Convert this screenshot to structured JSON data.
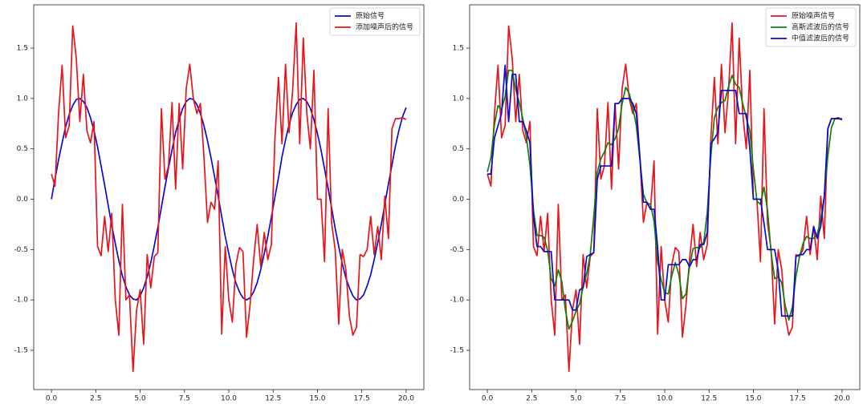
{
  "chart_data": [
    {
      "type": "line",
      "legend": "upper right",
      "xlim": [
        -1,
        21
      ],
      "ylim": [
        -1.89,
        1.93
      ],
      "xticks": [
        {
          "value": 0,
          "label": "0.0"
        },
        {
          "value": 2.5,
          "label": "2.5"
        },
        {
          "value": 5,
          "label": "5.0"
        },
        {
          "value": 7.5,
          "label": "7.5"
        },
        {
          "value": 10,
          "label": "10.0"
        },
        {
          "value": 12.5,
          "label": "12.5"
        },
        {
          "value": 15,
          "label": "15.0"
        },
        {
          "value": 17.5,
          "label": "17.5"
        },
        {
          "value": 20,
          "label": "20.0"
        }
      ],
      "yticks": [
        -1.5,
        {
          "value": -1,
          "label": "-1.0"
        },
        -0.5,
        {
          "value": 0,
          "label": "0.0"
        },
        0.5,
        {
          "value": 1,
          "label": "1.0"
        },
        1.5
      ],
      "x": [
        0,
        0.2,
        0.4,
        0.6,
        0.8,
        1,
        1.2,
        1.4,
        1.6,
        1.8,
        2,
        2.2,
        2.4,
        2.6,
        2.8,
        3,
        3.2,
        3.4,
        3.6,
        3.8,
        4,
        4.2,
        4.4,
        4.6,
        4.8,
        5,
        5.2,
        5.4,
        5.6,
        5.8,
        6,
        6.2,
        6.4,
        6.6,
        6.8,
        7,
        7.2,
        7.4,
        7.6,
        7.8,
        8,
        8.2,
        8.4,
        8.6,
        8.8,
        9,
        9.2,
        9.4,
        9.6,
        9.8,
        10,
        10.2,
        10.4,
        10.6,
        10.8,
        11,
        11.2,
        11.4,
        11.6,
        11.8,
        12,
        12.2,
        12.4,
        12.6,
        12.8,
        13,
        13.2,
        13.4,
        13.6,
        13.8,
        14,
        14.2,
        14.4,
        14.6,
        14.8,
        15,
        15.2,
        15.4,
        15.6,
        15.8,
        16,
        16.2,
        16.4,
        16.6,
        16.8,
        17,
        17.2,
        17.4,
        17.6,
        17.8,
        18,
        18.2,
        18.4,
        18.6,
        18.8,
        19,
        19.2,
        19.4,
        19.6,
        19.8,
        20
      ],
      "series": [
        {
          "name": "原始信号",
          "color": "#0a0ad0",
          "values": [
            0,
            0.2,
            0.39,
            0.56,
            0.72,
            0.84,
            0.93,
            0.99,
            1,
            0.97,
            0.91,
            0.81,
            0.68,
            0.52,
            0.33,
            0.14,
            -0.06,
            -0.26,
            -0.44,
            -0.61,
            -0.76,
            -0.87,
            -0.95,
            -0.99,
            -1,
            -0.96,
            -0.88,
            -0.77,
            -0.63,
            -0.46,
            -0.28,
            -0.08,
            0.12,
            0.31,
            0.49,
            0.66,
            0.79,
            0.9,
            0.97,
            1,
            0.99,
            0.94,
            0.85,
            0.73,
            0.58,
            0.41,
            0.22,
            0.03,
            -0.17,
            -0.37,
            -0.54,
            -0.7,
            -0.83,
            -0.92,
            -0.98,
            -1,
            -0.98,
            -0.92,
            -0.83,
            -0.7,
            -0.54,
            -0.37,
            -0.18,
            0.02,
            0.21,
            0.42,
            0.59,
            0.74,
            0.86,
            0.94,
            0.99,
            1,
            0.97,
            0.9,
            0.79,
            0.65,
            0.49,
            0.3,
            0.11,
            -0.09,
            -0.29,
            -0.47,
            -0.64,
            -0.78,
            -0.88,
            -0.96,
            -1,
            -0.99,
            -0.95,
            -0.86,
            -0.75,
            -0.6,
            -0.43,
            -0.25,
            -0.05,
            0.15,
            0.34,
            0.53,
            0.69,
            0.82,
            0.91
          ]
        },
        {
          "name": "添加噪声后的信号",
          "color": "#e8141c",
          "values": [
            0.25,
            0.13,
            0.85,
            1.33,
            0.61,
            0.73,
            1.72,
            1.4,
            0.77,
            1.24,
            0.68,
            0.56,
            0.77,
            -0.47,
            -0.56,
            -0.17,
            -0.52,
            -0.14,
            -1,
            -1.35,
            -0.05,
            -1,
            -0.95,
            -1.71,
            -1.1,
            -0.9,
            -1.44,
            -0.55,
            -0.88,
            -0.57,
            -0.53,
            0.9,
            0.2,
            0.33,
            0.96,
            0.1,
            0.95,
            0.3,
            1.1,
            1.34,
            1,
            0.85,
            0.95,
            0.42,
            -0.23,
            -0.03,
            -0.1,
            0.38,
            -1.34,
            -0.47,
            -1,
            -1.22,
            -0.65,
            -0.48,
            -0.52,
            -1.37,
            -1.05,
            -0.6,
            -0.25,
            -0.67,
            -0.33,
            -0.6,
            -0.45,
            0.6,
            1.21,
            0.55,
            1.34,
            0.66,
            1.08,
            1.75,
            0.55,
            1.6,
            0.85,
            0.5,
            1.28,
            0,
            0,
            -0.62,
            0.9,
            -0.24,
            -0.5,
            -1.24,
            -0.5,
            -0.7,
            -1.16,
            -1.35,
            -1.27,
            -0.55,
            -0.57,
            -0.5,
            -0.17,
            -0.55,
            -0.27,
            -0.6,
            0.03,
            -0.39,
            0.7,
            0.8,
            0.8,
            0.81,
            0.79
          ]
        }
      ]
    },
    {
      "type": "line",
      "legend": "upper right",
      "xlim": [
        -1,
        21
      ],
      "ylim": [
        -1.89,
        1.93
      ],
      "xticks": [
        {
          "value": 0,
          "label": "0.0"
        },
        {
          "value": 2.5,
          "label": "2.5"
        },
        {
          "value": 5,
          "label": "5.0"
        },
        {
          "value": 7.5,
          "label": "7.5"
        },
        {
          "value": 10,
          "label": "10.0"
        },
        {
          "value": 12.5,
          "label": "12.5"
        },
        {
          "value": 15,
          "label": "15.0"
        },
        {
          "value": 17.5,
          "label": "17.5"
        },
        {
          "value": 20,
          "label": "20.0"
        }
      ],
      "yticks": [
        -1.5,
        {
          "value": -1,
          "label": "-1.0"
        },
        -0.5,
        {
          "value": 0,
          "label": "0.0"
        },
        0.5,
        {
          "value": 1,
          "label": "1.0"
        },
        1.5
      ],
      "x": [
        0,
        0.2,
        0.4,
        0.6,
        0.8,
        1,
        1.2,
        1.4,
        1.6,
        1.8,
        2,
        2.2,
        2.4,
        2.6,
        2.8,
        3,
        3.2,
        3.4,
        3.6,
        3.8,
        4,
        4.2,
        4.4,
        4.6,
        4.8,
        5,
        5.2,
        5.4,
        5.6,
        5.8,
        6,
        6.2,
        6.4,
        6.6,
        6.8,
        7,
        7.2,
        7.4,
        7.6,
        7.8,
        8,
        8.2,
        8.4,
        8.6,
        8.8,
        9,
        9.2,
        9.4,
        9.6,
        9.8,
        10,
        10.2,
        10.4,
        10.6,
        10.8,
        11,
        11.2,
        11.4,
        11.6,
        11.8,
        12,
        12.2,
        12.4,
        12.6,
        12.8,
        13,
        13.2,
        13.4,
        13.6,
        13.8,
        14,
        14.2,
        14.4,
        14.6,
        14.8,
        15,
        15.2,
        15.4,
        15.6,
        15.8,
        16,
        16.2,
        16.4,
        16.6,
        16.8,
        17,
        17.2,
        17.4,
        17.6,
        17.8,
        18,
        18.2,
        18.4,
        18.6,
        18.8,
        19,
        19.2,
        19.4,
        19.6,
        19.8,
        20
      ],
      "series": [
        {
          "name": "原始噪声信号",
          "color": "#e8141c",
          "values": [
            0.25,
            0.13,
            0.85,
            1.33,
            0.61,
            0.73,
            1.72,
            1.4,
            0.77,
            1.24,
            0.68,
            0.56,
            0.77,
            -0.47,
            -0.56,
            -0.17,
            -0.52,
            -0.14,
            -1,
            -1.35,
            -0.05,
            -1,
            -0.95,
            -1.71,
            -1.1,
            -0.9,
            -1.44,
            -0.55,
            -0.88,
            -0.57,
            -0.53,
            0.9,
            0.2,
            0.33,
            0.96,
            0.1,
            0.95,
            0.3,
            1.1,
            1.34,
            1,
            0.85,
            0.95,
            0.42,
            -0.23,
            -0.03,
            -0.1,
            0.38,
            -1.34,
            -0.47,
            -1,
            -1.22,
            -0.65,
            -0.48,
            -0.52,
            -1.37,
            -1.05,
            -0.6,
            -0.25,
            -0.67,
            -0.33,
            -0.6,
            -0.45,
            0.6,
            1.21,
            0.55,
            1.34,
            0.66,
            1.08,
            1.75,
            0.55,
            1.6,
            0.85,
            0.5,
            1.28,
            0,
            0,
            -0.62,
            0.9,
            -0.24,
            -0.5,
            -1.24,
            -0.5,
            -0.7,
            -1.16,
            -1.35,
            -1.27,
            -0.55,
            -0.57,
            -0.5,
            -0.17,
            -0.55,
            -0.27,
            -0.6,
            0.03,
            -0.39,
            0.7,
            0.8,
            0.8,
            0.81,
            0.79
          ]
        },
        {
          "name": "高斯滤波后的信号",
          "color": "#108010",
          "values": [
            0.27,
            0.41,
            0.74,
            0.93,
            0.89,
            1.02,
            1.28,
            1.28,
            1.09,
            0.96,
            0.8,
            0.62,
            0.34,
            -0.11,
            -0.36,
            -0.36,
            -0.38,
            -0.51,
            -0.79,
            -0.86,
            -0.7,
            -0.82,
            -1.1,
            -1.29,
            -1.21,
            -1.11,
            -1.04,
            -0.87,
            -0.74,
            -0.55,
            -0.17,
            0.27,
            0.4,
            0.47,
            0.56,
            0.54,
            0.6,
            0.7,
            0.95,
            1.11,
            1.05,
            0.91,
            0.73,
            0.39,
            0.05,
            -0.04,
            -0.05,
            -0.22,
            -0.62,
            -0.8,
            -0.93,
            -0.94,
            -0.76,
            -0.63,
            -0.75,
            -0.99,
            -0.94,
            -0.67,
            -0.49,
            -0.48,
            -0.48,
            -0.43,
            -0.13,
            0.42,
            0.81,
            0.91,
            0.96,
            0.98,
            1.12,
            1.23,
            1.14,
            1.11,
            0.95,
            0.81,
            0.68,
            0.3,
            -0.02,
            -0.05,
            0.12,
            -0.11,
            -0.53,
            -0.79,
            -0.77,
            -0.83,
            -1.06,
            -1.2,
            -1.07,
            -0.77,
            -0.57,
            -0.44,
            -0.37,
            -0.39,
            -0.39,
            -0.35,
            -0.2,
            0.03,
            0.43,
            0.71,
            0.8,
            0.8,
            0.8
          ]
        },
        {
          "name": "中值滤波后的信号",
          "color": "#0a0ad0",
          "values": [
            0.25,
            0.25,
            0.61,
            0.73,
            0.85,
            1.33,
            0.77,
            1.24,
            1.24,
            0.77,
            0.77,
            0.68,
            0.56,
            -0.17,
            -0.47,
            -0.47,
            -0.52,
            -0.52,
            -0.52,
            -1,
            -1,
            -1,
            -1,
            -1,
            -1.1,
            -1.1,
            -0.9,
            -0.88,
            -0.57,
            -0.55,
            -0.53,
            0.2,
            0.33,
            0.33,
            0.33,
            0.33,
            0.95,
            0.95,
            1,
            1,
            1,
            0.95,
            0.85,
            0.42,
            -0.03,
            -0.03,
            -0.1,
            -0.1,
            -0.47,
            -1,
            -1,
            -0.65,
            -0.65,
            -0.65,
            -0.65,
            -0.6,
            -0.6,
            -0.67,
            -0.6,
            -0.6,
            -0.45,
            -0.45,
            -0.33,
            0.55,
            0.6,
            0.66,
            1.08,
            1.08,
            1.08,
            1.08,
            1.08,
            0.85,
            0.85,
            0.85,
            0.5,
            0,
            0,
            0,
            -0.24,
            -0.5,
            -0.5,
            -0.5,
            -0.7,
            -1.16,
            -1.16,
            -1.16,
            -1.16,
            -0.57,
            -0.55,
            -0.55,
            -0.5,
            -0.5,
            -0.27,
            -0.39,
            -0.27,
            0.03,
            0.7,
            0.8,
            0.8,
            0.8,
            0.79
          ]
        }
      ]
    }
  ]
}
